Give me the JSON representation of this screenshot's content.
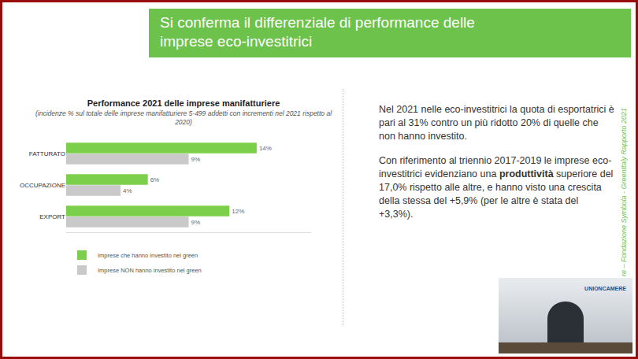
{
  "slide": {
    "header": {
      "lines": [
        "Si conferma il differenziale di performance delle",
        "imprese eco-investitrici"
      ]
    },
    "side_text": "re – Fondazione Symbola - GreenItaly Rapporto 2021",
    "paragraphs": [
      [
        {
          "text": "Nel 2021 nelle eco-investitrici la quota di esportatrici è pari al 31% contro un più ridotto 20% di quelle che non hanno investito."
        }
      ],
      [
        {
          "text": "Con riferimento al triennio 2017-2019 le imprese eco-investitrici evidenziano una "
        },
        {
          "text": "produttività",
          "bold": true
        },
        {
          "text": " superiore del 17,0% rispetto alle altre, e hanno visto una crescita della stessa del +5,9% (per le altre è stata del +3,3%)."
        }
      ]
    ],
    "inset_label": "UNIONCAMERE"
  },
  "chart_data": {
    "type": "bar",
    "orientation": "horizontal",
    "title": "Performance 2021 delle imprese manifatturiere",
    "subtitle": "(incidenze % sul totale delle imprese manifatturiere 5-499 addetti con incrementi nel 2021 rispetto al 2020)",
    "categories": [
      "FATTURATO",
      "OCCUPAZIONE",
      "EXPORT"
    ],
    "series": [
      {
        "name": "Imprese che hanno investito nel green",
        "color": "#7ccf4a",
        "values": [
          14,
          6,
          12
        ],
        "value_labels": [
          "14%",
          "6%",
          "12%"
        ]
      },
      {
        "name": "Imprese NON hanno investito nel green",
        "color": "#c9c9c9",
        "values": [
          9,
          4,
          9
        ],
        "value_labels": [
          "9%",
          "4%",
          "9%"
        ]
      }
    ],
    "xlim": [
      0,
      18
    ],
    "xticks": [],
    "tick_labels": "y",
    "data_labels": true,
    "legend": "bottom",
    "grid": false
  }
}
